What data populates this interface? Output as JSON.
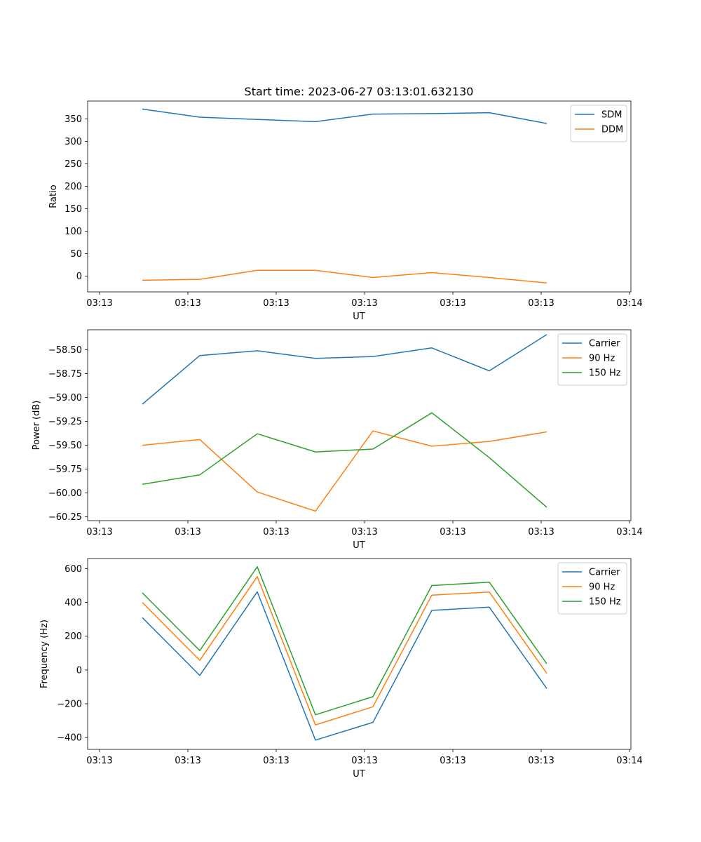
{
  "figure_title": "Start time: 2023-06-27 03:13:01.632130",
  "colors": {
    "blue": "#1f77b4",
    "orange": "#ff7f0e",
    "green": "#2ca02c"
  },
  "chart_data": [
    {
      "type": "line",
      "xlabel": "UT",
      "ylabel": "Ratio",
      "x_tick_labels": [
        "03:13",
        "03:13",
        "03:13",
        "03:13",
        "03:13",
        "03:13",
        "03:14"
      ],
      "y_ticks": [
        0,
        50,
        100,
        150,
        200,
        250,
        300,
        350
      ],
      "ylim": [
        -35,
        390
      ],
      "legend_position": "top-right",
      "series": [
        {
          "name": "SDM",
          "color": "#1f77b4",
          "values": [
            372,
            354,
            349,
            344,
            361,
            362,
            364,
            340
          ]
        },
        {
          "name": "DDM",
          "color": "#ff7f0e",
          "values": [
            -9,
            -7,
            13,
            13,
            -3,
            8,
            -3,
            -15
          ]
        }
      ]
    },
    {
      "type": "line",
      "xlabel": "UT",
      "ylabel": "Power (dB)",
      "x_tick_labels": [
        "03:13",
        "03:13",
        "03:13",
        "03:13",
        "03:13",
        "03:13",
        "03:14"
      ],
      "y_ticks": [
        -58.5,
        -58.75,
        -59.0,
        -59.25,
        -59.5,
        -59.75,
        -60.0,
        -60.25
      ],
      "y_tick_labels": [
        "−58.50",
        "−58.75",
        "−59.00",
        "−59.25",
        "−59.50",
        "−59.75",
        "−60.00",
        "−60.25"
      ],
      "ylim": [
        -60.29,
        -58.29
      ],
      "legend_position": "top-right",
      "series": [
        {
          "name": "Carrier",
          "color": "#1f77b4",
          "values": [
            -59.07,
            -58.56,
            -58.51,
            -58.59,
            -58.57,
            -58.48,
            -58.72,
            -58.34
          ]
        },
        {
          "name": "90 Hz",
          "color": "#ff7f0e",
          "values": [
            -59.5,
            -59.44,
            -59.99,
            -60.19,
            -59.35,
            -59.51,
            -59.46,
            -59.36
          ]
        },
        {
          "name": "150 Hz",
          "color": "#2ca02c",
          "values": [
            -59.91,
            -59.81,
            -59.38,
            -59.57,
            -59.54,
            -59.16,
            -59.63,
            -60.15
          ]
        }
      ]
    },
    {
      "type": "line",
      "xlabel": "UT",
      "ylabel": "Frequency (Hz)",
      "x_tick_labels": [
        "03:13",
        "03:13",
        "03:13",
        "03:13",
        "03:13",
        "03:13",
        "03:14"
      ],
      "y_ticks": [
        -400,
        -200,
        0,
        200,
        400,
        600
      ],
      "y_tick_labels": [
        "−400",
        "−200",
        "0",
        "200",
        "400",
        "600"
      ],
      "ylim": [
        -470,
        660
      ],
      "legend_position": "top-right",
      "series": [
        {
          "name": "Carrier",
          "color": "#1f77b4",
          "values": [
            310,
            -32,
            463,
            -415,
            -310,
            353,
            372,
            -110
          ]
        },
        {
          "name": "90 Hz",
          "color": "#ff7f0e",
          "values": [
            400,
            57,
            553,
            -325,
            -218,
            443,
            462,
            -20
          ]
        },
        {
          "name": "150 Hz",
          "color": "#2ca02c",
          "values": [
            457,
            115,
            611,
            -265,
            -158,
            500,
            520,
            37
          ]
        }
      ]
    }
  ]
}
